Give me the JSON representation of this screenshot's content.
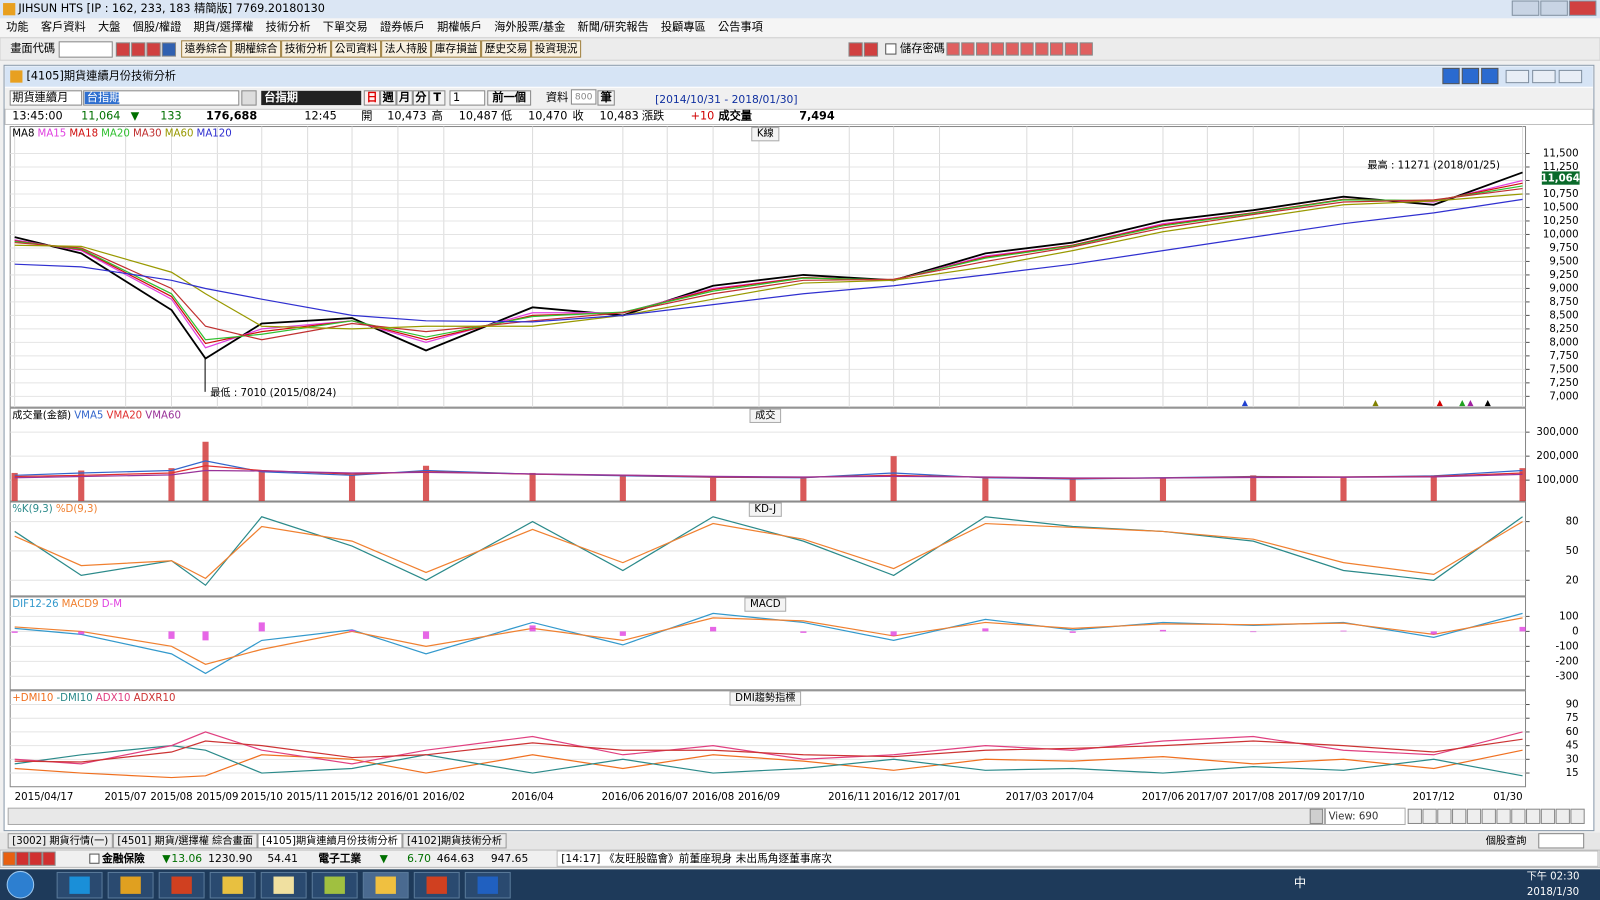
{
  "window": {
    "title": "JIHSUN HTS    [IP : 162, 233, 183 精簡版] 7769.20180130"
  },
  "menu": [
    "功能",
    "客戶資料",
    "大盤",
    "個股/權證",
    "期貨/選擇權",
    "技術分析",
    "下單交易",
    "證券帳戶",
    "期權帳戶",
    "海外股票/基金",
    "新聞/研究報告",
    "投顧專區",
    "公告事項"
  ],
  "toolbar": {
    "code_label": "畫面代碼",
    "buttons": [
      "遠券綜合",
      "期權綜合",
      "技術分析",
      "公司資料",
      "法人持股",
      "庫存損益",
      "歷史交易",
      "投資現況"
    ],
    "save_password": "儲存密碼"
  },
  "chart_window": {
    "title": "[4105]期貨連續月份技術分析"
  },
  "controls": {
    "product": "期貨連續月",
    "symbol": "台指期",
    "symbol_name": "台指期",
    "period_buttons": [
      "日",
      "週",
      "月",
      "分",
      "T"
    ],
    "interval": "1",
    "prev": "前一個",
    "data_label": "資料",
    "count": "800",
    "count_unit": "筆",
    "range": "[2014/10/31 - 2018/01/30]"
  },
  "quote": {
    "time": "13:45:00",
    "last": "11,064",
    "arrow": "▼",
    "change": "133",
    "volume_total": "176,688",
    "tick_time": "12:45",
    "open_label": "開",
    "open": "10,473",
    "high_label": "高",
    "high": "10,487",
    "low_label": "低",
    "low": "10,470",
    "close_label": "收",
    "close": "10,483",
    "chg_label": "漲跌",
    "chg": "+10",
    "vol_label": "成交量",
    "vol": "7,494"
  },
  "chart_data": [
    {
      "type": "line",
      "title": "K線",
      "x": [
        "2015-04-17",
        "2015-06-01",
        "2015-08-01",
        "2015-08-24",
        "2015-10-01",
        "2015-12-01",
        "2016-01-20",
        "2016-04-01",
        "2016-06-01",
        "2016-08-01",
        "2016-10-01",
        "2016-12-01",
        "2017-02-01",
        "2017-04-01",
        "2017-06-01",
        "2017-08-01",
        "2017-10-01",
        "2017-12-01",
        "2018-01-30"
      ],
      "xlim": [
        "2015-04-14",
        "2018-02-01"
      ],
      "xticks": [
        {
          "value": "2015-04-17",
          "label": "2015/04/17"
        },
        {
          "value": "2015-07-01",
          "label": "2015/07"
        },
        {
          "value": "2015-08-01",
          "label": "2015/08"
        },
        {
          "value": "2015-09-01",
          "label": "2015/09"
        },
        {
          "value": "2015-10-01",
          "label": "2015/10"
        },
        {
          "value": "2015-11-01",
          "label": "2015/11"
        },
        {
          "value": "2015-12-01",
          "label": "2015/12"
        },
        {
          "value": "2016-01-01",
          "label": "2016/01"
        },
        {
          "value": "2016-02-01",
          "label": "2016/02"
        },
        {
          "value": "2016-04-01",
          "label": "2016/04"
        },
        {
          "value": "2016-06-01",
          "label": "2016/06"
        },
        {
          "value": "2016-07-01",
          "label": "2016/07"
        },
        {
          "value": "2016-08-01",
          "label": "2016/08"
        },
        {
          "value": "2016-09-01",
          "label": "2016/09"
        },
        {
          "value": "2016-11-01",
          "label": "2016/11"
        },
        {
          "value": "2016-12-01",
          "label": "2016/12"
        },
        {
          "value": "2017-01-01",
          "label": "2017/01"
        },
        {
          "value": "2017-03-01",
          "label": "2017/03"
        },
        {
          "value": "2017-04-01",
          "label": "2017/04"
        },
        {
          "value": "2017-06-01",
          "label": "2017/06"
        },
        {
          "value": "2017-07-01",
          "label": "2017/07"
        },
        {
          "value": "2017-08-01",
          "label": "2017/08"
        },
        {
          "value": "2017-09-01",
          "label": "2017/09"
        },
        {
          "value": "2017-10-01",
          "label": "2017/10"
        },
        {
          "value": "2017-12-01",
          "label": "2017/12"
        },
        {
          "value": "2018-01-30",
          "label": "01/30"
        }
      ],
      "ylim": [
        6800,
        12000
      ],
      "yticks": [
        {
          "value": 7000,
          "label": "7,000"
        },
        {
          "value": 7250,
          "label": "7,250"
        },
        {
          "value": 7500,
          "label": "7,500"
        },
        {
          "value": 7750,
          "label": "7,750"
        },
        {
          "value": 8000,
          "label": "8,000"
        },
        {
          "value": 8250,
          "label": "8,250"
        },
        {
          "value": 8500,
          "label": "8,500"
        },
        {
          "value": 8750,
          "label": "8,750"
        },
        {
          "value": 9000,
          "label": "9,000"
        },
        {
          "value": 9250,
          "label": "9,250"
        },
        {
          "value": 9500,
          "label": "9,500"
        },
        {
          "value": 9750,
          "label": "9,750"
        },
        {
          "value": 10000,
          "label": "10,000"
        },
        {
          "value": 10250,
          "label": "10,250"
        },
        {
          "value": 10500,
          "label": "10,500"
        },
        {
          "value": 10750,
          "label": "10,750"
        },
        {
          "value": 11000,
          "label": "11,000"
        },
        {
          "value": 11250,
          "label": "11,250"
        },
        {
          "value": 11500,
          "label": "11,500"
        }
      ],
      "grid": true,
      "annotations": [
        "最高 : 11271 (2018/01/25)",
        "最低 : 7010 (2015/08/24)"
      ],
      "series": [
        {
          "name": "MA8",
          "color": "#000000",
          "values": [
            9950,
            9650,
            8600,
            7700,
            8350,
            8450,
            7850,
            8650,
            8500,
            9050,
            9250,
            9150,
            9650,
            9850,
            10250,
            10450,
            10700,
            10550,
            11150
          ]
        },
        {
          "name": "MA15",
          "color": "#e040e0",
          "values": [
            9900,
            9700,
            8800,
            7900,
            8250,
            8400,
            8000,
            8550,
            8550,
            9000,
            9200,
            9150,
            9600,
            9800,
            10200,
            10400,
            10650,
            10600,
            11000
          ]
        },
        {
          "name": "MA18",
          "color": "#d01010",
          "values": [
            9880,
            9720,
            8850,
            7980,
            8200,
            8400,
            8050,
            8500,
            8550,
            8980,
            9200,
            9150,
            9580,
            9800,
            10180,
            10400,
            10650,
            10620,
            10950
          ]
        },
        {
          "name": "MA20",
          "color": "#30c030",
          "values": [
            9870,
            9730,
            8900,
            8050,
            8150,
            8400,
            8100,
            8480,
            8560,
            8950,
            9190,
            9160,
            9560,
            9790,
            10160,
            10390,
            10640,
            10630,
            10900
          ]
        },
        {
          "name": "MA30",
          "color": "#c03030",
          "values": [
            9850,
            9750,
            9000,
            8300,
            8050,
            8350,
            8200,
            8400,
            8550,
            8900,
            9150,
            9170,
            9500,
            9770,
            10120,
            10370,
            10600,
            10640,
            10850
          ]
        },
        {
          "name": "MA60",
          "color": "#999900",
          "values": [
            9800,
            9780,
            9300,
            8900,
            8300,
            8250,
            8300,
            8300,
            8500,
            8800,
            9100,
            9150,
            9400,
            9700,
            10050,
            10300,
            10550,
            10620,
            10750
          ]
        },
        {
          "name": "MA120",
          "color": "#3030d0",
          "values": [
            9450,
            9400,
            9150,
            9000,
            8800,
            8500,
            8400,
            8380,
            8500,
            8700,
            8900,
            9050,
            9250,
            9450,
            9700,
            9950,
            10200,
            10400,
            10650
          ]
        }
      ]
    },
    {
      "type": "combo",
      "title": "成交",
      "ylim": [
        13000,
        400000
      ],
      "yticks": [
        {
          "value": 100000,
          "label": "100,000"
        },
        {
          "value": 200000,
          "label": "200,000"
        },
        {
          "value": 300000,
          "label": "300,000"
        }
      ],
      "series": [
        {
          "name": "成交量(金額)",
          "type": "bar",
          "color": "#d03030",
          "values": [
            130000,
            140000,
            150000,
            260000,
            140000,
            120000,
            160000,
            130000,
            120000,
            110000,
            110000,
            200000,
            110000,
            105000,
            110000,
            120000,
            115000,
            120000,
            150000
          ]
        },
        {
          "name": "VMA5",
          "type": "line",
          "color": "#3366cc",
          "values": [
            120000,
            130000,
            140000,
            180000,
            135000,
            120000,
            140000,
            125000,
            118000,
            112000,
            110000,
            130000,
            110000,
            105000,
            110000,
            115000,
            113000,
            118000,
            140000
          ]
        },
        {
          "name": "VMA20",
          "type": "line",
          "color": "#e03030",
          "values": [
            115000,
            120000,
            130000,
            160000,
            140000,
            125000,
            135000,
            125000,
            120000,
            113000,
            112000,
            120000,
            112000,
            107000,
            109000,
            113000,
            113000,
            116000,
            130000
          ]
        },
        {
          "name": "VMA60",
          "type": "line",
          "color": "#993399",
          "values": [
            110000,
            115000,
            122000,
            140000,
            138000,
            130000,
            132000,
            126000,
            121000,
            116000,
            113000,
            116000,
            113000,
            109000,
            109000,
            111000,
            112000,
            114000,
            124000
          ]
        }
      ]
    },
    {
      "type": "line",
      "title": "KD-J",
      "ylim": [
        4,
        100
      ],
      "yticks": [
        20,
        50,
        80
      ],
      "series": [
        {
          "name": "%K(9,3)",
          "color": "#2b8a8a",
          "values": [
            70,
            25,
            40,
            15,
            85,
            55,
            20,
            80,
            30,
            85,
            60,
            25,
            85,
            75,
            70,
            60,
            30,
            20,
            85
          ]
        },
        {
          "name": "%D(9,3)",
          "color": "#f08030",
          "values": [
            65,
            35,
            40,
            22,
            75,
            60,
            28,
            72,
            38,
            78,
            62,
            32,
            78,
            74,
            70,
            62,
            38,
            26,
            80
          ]
        }
      ]
    },
    {
      "type": "combo",
      "title": "MACD",
      "ylim": [
        -390,
        230
      ],
      "yticks": [
        -300,
        -200,
        -100,
        0,
        100
      ],
      "series": [
        {
          "name": "DIF12-26",
          "type": "line",
          "color": "#3399cc",
          "values": [
            20,
            -20,
            -150,
            -280,
            -60,
            10,
            -150,
            60,
            -90,
            120,
            60,
            -60,
            80,
            10,
            60,
            40,
            60,
            -40,
            120
          ]
        },
        {
          "name": "MACD9",
          "type": "line",
          "color": "#f08030",
          "values": [
            30,
            0,
            -100,
            -220,
            -120,
            0,
            -100,
            20,
            -60,
            90,
            70,
            -30,
            60,
            20,
            50,
            45,
            55,
            -20,
            90
          ]
        },
        {
          "name": "D-M",
          "type": "bar",
          "color": "#e040e0",
          "values": [
            -10,
            -20,
            -50,
            -60,
            60,
            10,
            -50,
            40,
            -30,
            30,
            -10,
            -30,
            20,
            -10,
            10,
            -5,
            5,
            -20,
            30
          ]
        }
      ]
    },
    {
      "type": "line",
      "title": "DMI趨勢指標",
      "ylim": [
        0,
        105
      ],
      "yticks": [
        15,
        30,
        45,
        60,
        75,
        90
      ],
      "series": [
        {
          "name": "+DMI10",
          "color": "#f07020",
          "values": [
            20,
            15,
            10,
            12,
            35,
            30,
            15,
            35,
            20,
            35,
            28,
            18,
            30,
            28,
            33,
            25,
            30,
            20,
            40
          ]
        },
        {
          "name": "-DMI10",
          "color": "#2b8a8a",
          "values": [
            25,
            35,
            45,
            40,
            15,
            20,
            35,
            15,
            30,
            15,
            20,
            30,
            18,
            20,
            15,
            22,
            18,
            30,
            12
          ]
        },
        {
          "name": "ADX10",
          "color": "#e04080",
          "values": [
            30,
            25,
            45,
            60,
            40,
            25,
            40,
            55,
            35,
            45,
            30,
            35,
            45,
            40,
            50,
            55,
            40,
            35,
            60
          ]
        },
        {
          "name": "ADXR10",
          "color": "#cc3333",
          "values": [
            28,
            27,
            38,
            50,
            45,
            32,
            35,
            48,
            40,
            40,
            35,
            33,
            40,
            42,
            45,
            50,
            45,
            38,
            52
          ]
        }
      ]
    }
  ],
  "bottom": {
    "view": "View: 690"
  },
  "tabs": [
    "[3002] 期貨行情(一)",
    "[4501] 期貨/選擇權 綜合畫面",
    "[4105]期貨連續月份技術分析",
    "[4102]期貨技術分析"
  ],
  "tabs_right": "個股查詢",
  "ticker": {
    "group1": "金融保險",
    "arrow1": "▼",
    "g1_change": "13.06",
    "g1_index": "1230.90",
    "g1_amount": "54.41",
    "group2": "電子工業",
    "arrow2": "▼",
    "g2_change": "6.70",
    "g2_index": "464.63",
    "g2_amount": "947.65",
    "news": "[14:17] 《友旺股臨會》前董座現身 未出馬角逐董事席次"
  },
  "taskbar": {
    "lang": "中",
    "time": "下午 02:30",
    "date": "2018/1/30"
  }
}
